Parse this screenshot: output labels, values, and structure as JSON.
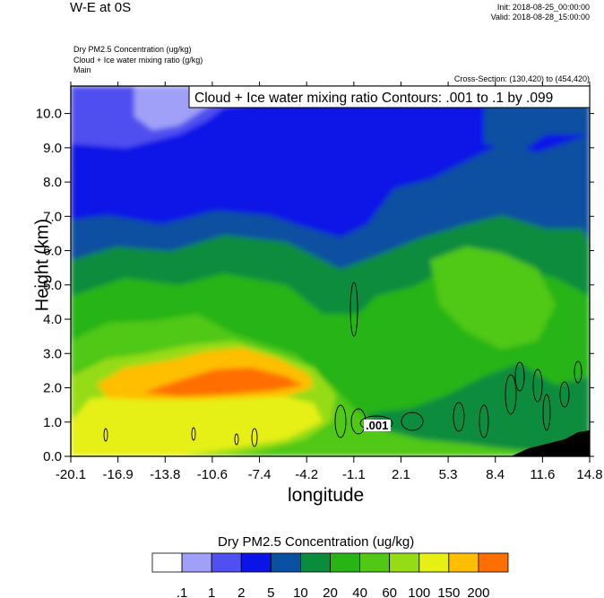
{
  "header": {
    "title": "W-E at 0S",
    "init": "Init: 2018-08-25_00:00:00",
    "valid": "Valid: 2018-08-28_15:00:00",
    "field_lines": [
      "Dry PM2.5 Concentration   (ug/kg)",
      "Cloud + Ice water mixing ratio   (g/kg)",
      "Main"
    ],
    "cross_section": "Cross-Section: (130,420) to (454,420)"
  },
  "chart_data": {
    "type": "heatmap",
    "title": "W-E at 0S",
    "contour_label": "Cloud + Ice water mixing ratio Contours: .001 to .1 by .099",
    "contour_value_label": ".001",
    "xlabel": "longitude",
    "ylabel": "Height (km)",
    "xlim": [
      -20.1,
      14.8
    ],
    "ylim": [
      0.0,
      10.8
    ],
    "x_ticks": [
      "-20.1",
      "-16.9",
      "-13.8",
      "-10.6",
      "-7.4",
      "-4.2",
      "-1.1",
      "2.1",
      "5.3",
      "8.4",
      "11.6",
      "14.8"
    ],
    "y_ticks": [
      "0.0",
      "1.0",
      "2.0",
      "3.0",
      "4.0",
      "5.0",
      "6.0",
      "7.0",
      "8.0",
      "9.0",
      "10.0"
    ],
    "colorbar": {
      "title": "Dry PM2.5 Concentration  (ug/kg)",
      "levels": [
        ".1",
        "1",
        "2",
        "5",
        "10",
        "20",
        "40",
        "60",
        "100",
        "150",
        "200"
      ],
      "colors": [
        "#ffffff",
        "#a0a0f8",
        "#5050f0",
        "#0a14e6",
        "#0a50a0",
        "#0a8c3c",
        "#28b414",
        "#50c814",
        "#96dc14",
        "#e6f014",
        "#ffbe00",
        "#ff6e00",
        "#ff1e00"
      ]
    }
  }
}
